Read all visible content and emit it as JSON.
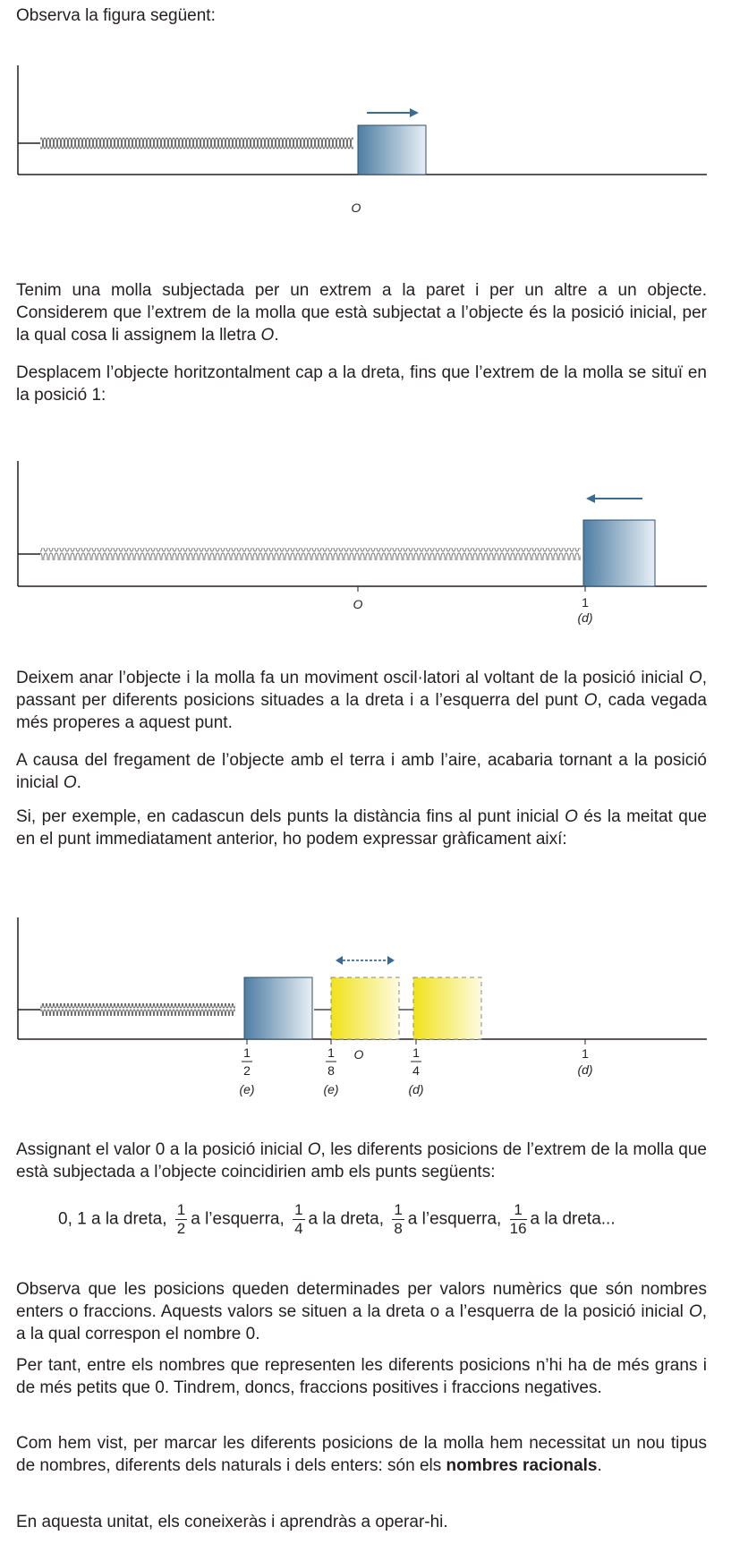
{
  "intro": "Observa la figura següent:",
  "fig1": {
    "label_O": "O"
  },
  "p1": {
    "a": "Tenim una molla subjectada per un extrem a la paret i per un altre a un objecte. Considerem que l’extrem de la molla que està subjectat a l’objecte és la posició inicial, per la qual cosa li assignem la lletra ",
    "b": "O",
    "c": "."
  },
  "p2": "Desplacem l’objecte horitzontalment cap a la dreta, fins que l’extrem de la molla se situï en la posició 1:",
  "fig2": {
    "label_O": "O",
    "label_1": "1",
    "label_d": "(d)"
  },
  "p3": {
    "a": "Deixem anar l’objecte i la molla fa un moviment oscil·latori al voltant de la posició inicial ",
    "b": "O",
    "c": ", passant per diferents posicions situades a la dreta i a l’esquerra del punt ",
    "d": "O",
    "e": ", cada vegada més properes a aquest punt."
  },
  "p4": {
    "a": "A causa del fregament de l’objecte amb el terra i amb l’aire, acabaria tornant a la posició inicial ",
    "b": "O",
    "c": "."
  },
  "p5": {
    "a": "Si, per exemple, en cadascun dels punts la distància fins al punt inicial ",
    "b": "O",
    "c": " és la meitat que en el punt immediatament anterior, ho podem expressar gràficament així:"
  },
  "fig3": {
    "half_num": "1",
    "half_den": "2",
    "half_tag": "(e)",
    "eighth_num": "1",
    "eighth_den": "8",
    "eighth_tag": "(e)",
    "label_O": "O",
    "quarter_num": "1",
    "quarter_den": "4",
    "quarter_tag": "(d)",
    "one": "1",
    "one_tag": "(d)"
  },
  "p6": {
    "a": "Assignant el valor 0 a la posició inicial ",
    "b": "O",
    "c": ", les diferents posicions de l’extrem de la molla que està subjectada a l’objecte coincidirien amb els punts següents:"
  },
  "formula": {
    "start": "0, 1 a la dreta,",
    "f1_num": "1",
    "f1_den": "2",
    "t1": "a l’esquerra,",
    "f2_num": "1",
    "f2_den": "4",
    "t2": "a la dreta,",
    "f3_num": "1",
    "f3_den": "8",
    "t3": "a l’esquerra,",
    "f4_num": "1",
    "f4_den": "16",
    "t4": "a la dreta..."
  },
  "p7": {
    "a": "Observa que les posicions queden determinades per valors numèrics que són nombres enters o fraccions. Aquests valors se situen a la dreta o a l’esquerra de la posició inicial ",
    "b": "O",
    "c": ", a la qual correspon el nombre 0."
  },
  "p8": "Per tant, entre els nombres que representen les diferents posicions n’hi ha de més grans i de més petits que 0. Tindrem, doncs, fraccions positives i fraccions negatives.",
  "p9": {
    "a": "Com hem vist, per marcar les diferents posicions de la molla hem necessitat un nou tipus de nombres, diferents dels naturals i dels enters: són els ",
    "b": "nombres racionals",
    "c": "."
  },
  "p10": "En aquesta unitat, els coneixeràs i aprendràs a operar-hi.",
  "colors": {
    "block_blue": "#5b86a8",
    "block_yellow": "#f3ea2a",
    "arrow": "#3b6b94"
  }
}
